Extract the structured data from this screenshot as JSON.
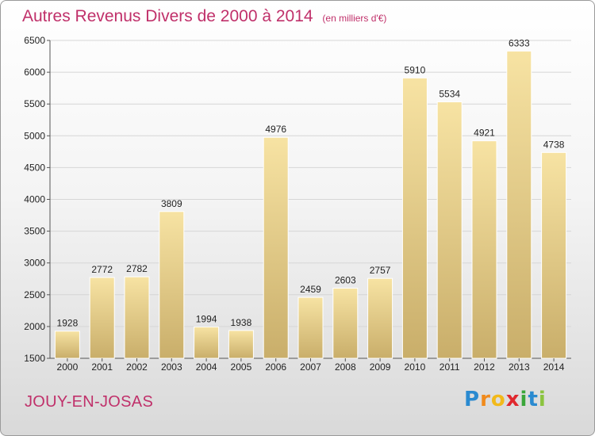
{
  "header": {
    "title": "Autres Revenus Divers de 2000 à 2014",
    "unit": "(en milliers d'€)"
  },
  "footer": {
    "city": "JOUY-EN-JOSAS",
    "logo": {
      "p": "P",
      "r": "r",
      "o": "o",
      "x": "x",
      "i1": "i",
      "t": "t",
      "i2": "i"
    }
  },
  "colors": {
    "title": "#c0306a",
    "bar_light": "#f7e3a3",
    "bar_dark": "#c9ae6a"
  },
  "chart_data": {
    "type": "bar",
    "title": "Autres Revenus Divers de 2000 à 2014",
    "xlabel": "",
    "ylabel": "",
    "ylim": [
      1500,
      6500
    ],
    "yticks": [
      1500,
      2000,
      2500,
      3000,
      3500,
      4000,
      4500,
      5000,
      5500,
      6000,
      6500
    ],
    "grid": true,
    "categories": [
      "2000",
      "2001",
      "2002",
      "2003",
      "2004",
      "2005",
      "2006",
      "2007",
      "2008",
      "2009",
      "2010",
      "2011",
      "2012",
      "2013",
      "2014"
    ],
    "values": [
      1928,
      2772,
      2782,
      3809,
      1994,
      1938,
      4976,
      2459,
      2603,
      2757,
      5910,
      5534,
      4921,
      6333,
      4738
    ]
  }
}
